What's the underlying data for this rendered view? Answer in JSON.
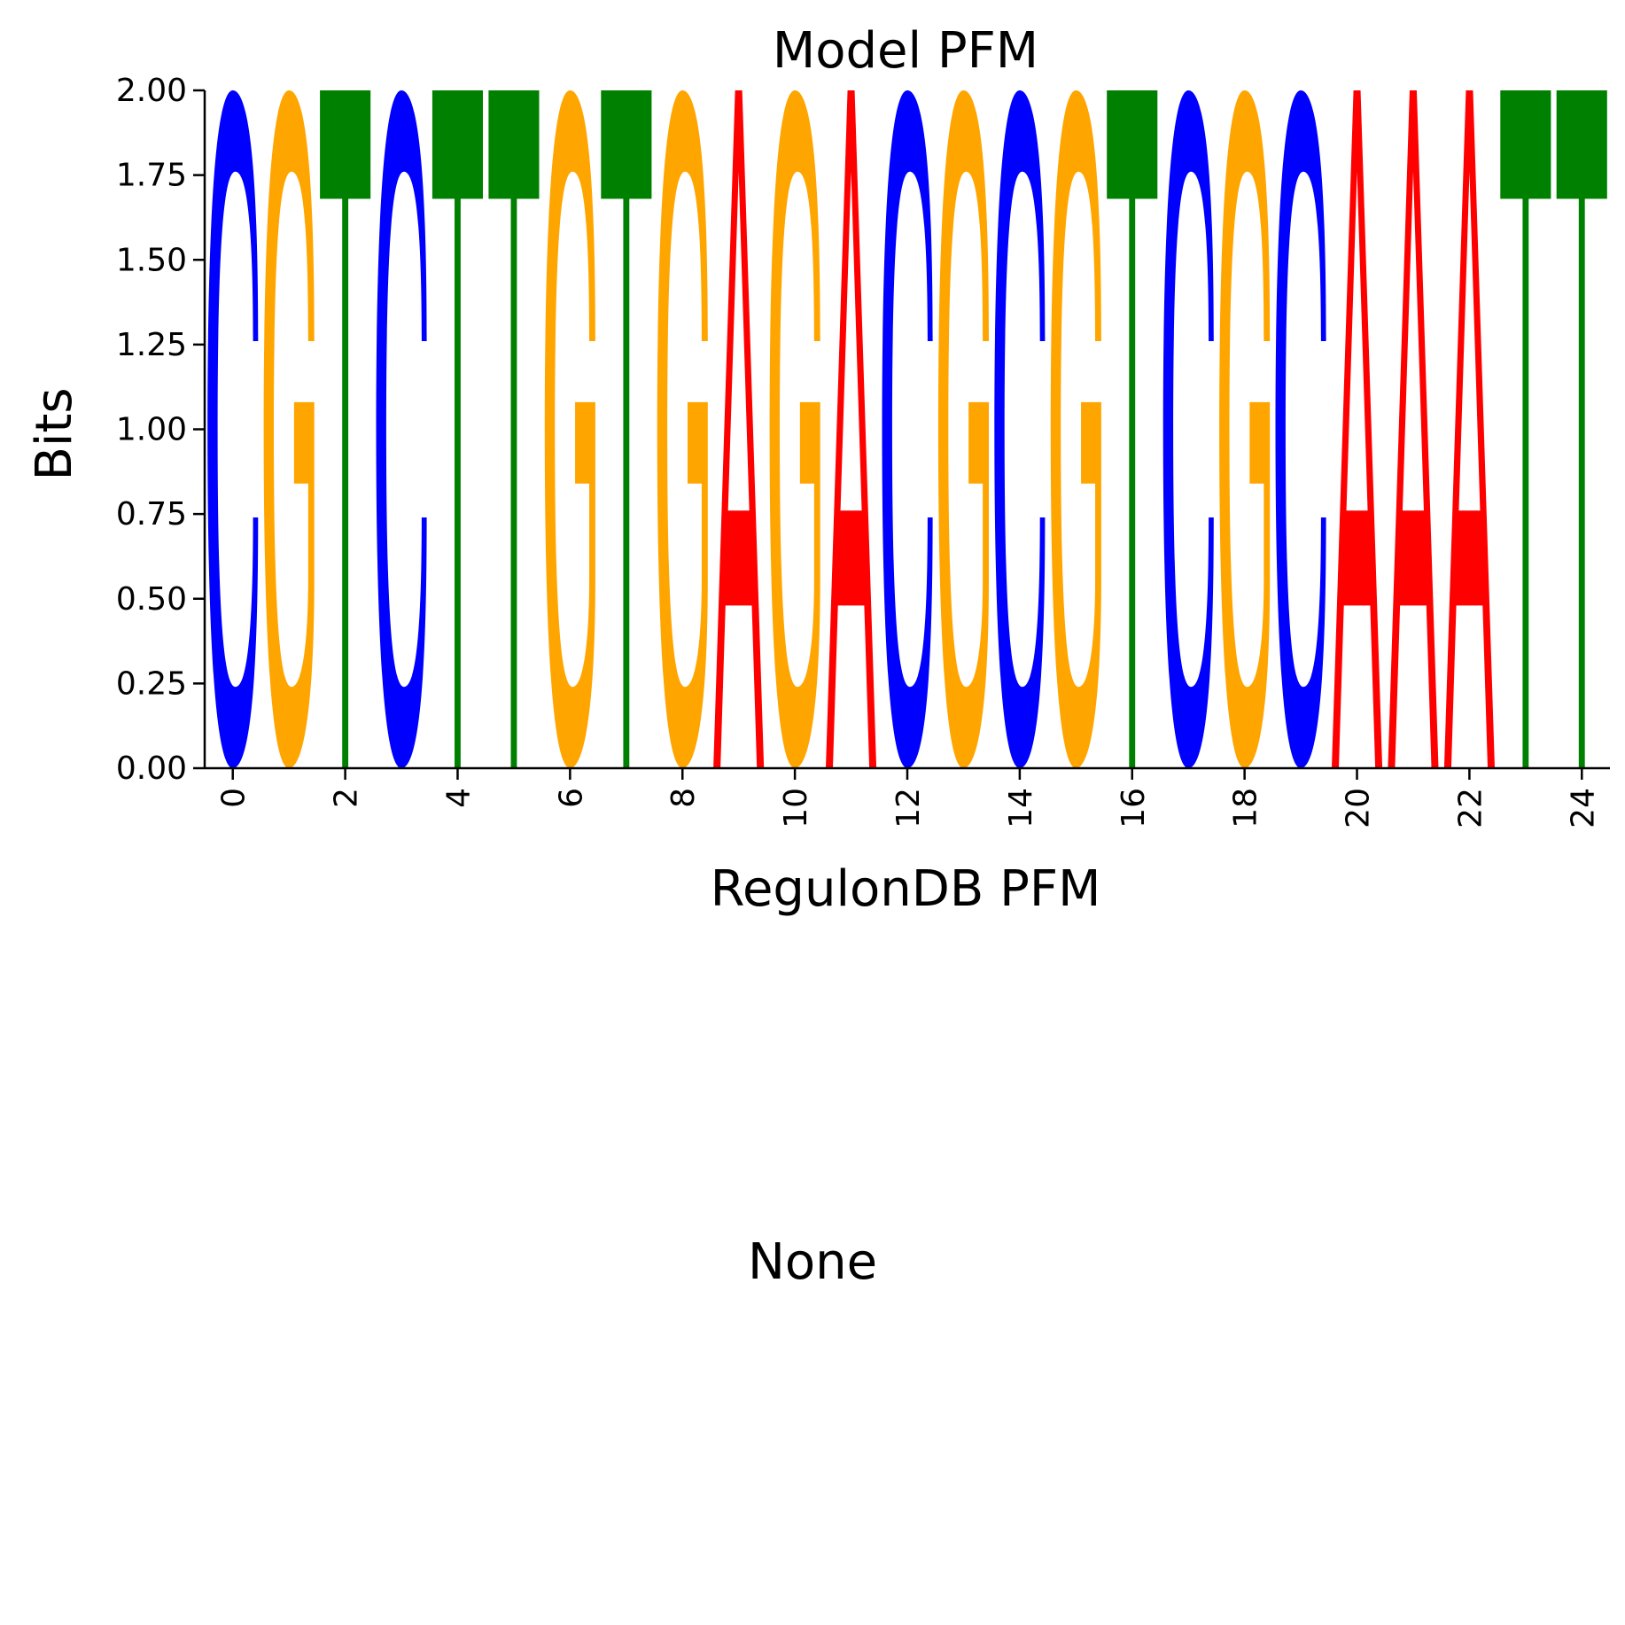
{
  "chart_data": {
    "type": "sequence-logo",
    "title": "Model PFM",
    "xlabel": "RegulonDB PFM",
    "ylabel": "Bits",
    "ylim": [
      0,
      2
    ],
    "xlim": [
      -0.5,
      24.5
    ],
    "yticks": [
      "0.00",
      "0.25",
      "0.50",
      "0.75",
      "1.00",
      "1.25",
      "1.50",
      "1.75",
      "2.00"
    ],
    "xticks": [
      "0",
      "2",
      "4",
      "6",
      "8",
      "10",
      "12",
      "14",
      "16",
      "18",
      "20",
      "22",
      "24"
    ],
    "sequence": [
      "C",
      "G",
      "T",
      "C",
      "T",
      "T",
      "G",
      "T",
      "G",
      "A",
      "G",
      "A",
      "C",
      "G",
      "C",
      "G",
      "T",
      "C",
      "G",
      "C",
      "A",
      "A",
      "A",
      "T",
      "T"
    ],
    "bits": [
      2,
      2,
      2,
      2,
      2,
      2,
      2,
      2,
      2,
      2,
      2,
      2,
      2,
      2,
      2,
      2,
      2,
      2,
      2,
      2,
      2,
      2,
      2,
      2,
      2
    ],
    "colors": {
      "A": "#ff0000",
      "C": "#0000ff",
      "G": "#ffa500",
      "T": "#008000"
    },
    "spines": "left-bottom"
  },
  "second_panel": {
    "title": "None"
  }
}
